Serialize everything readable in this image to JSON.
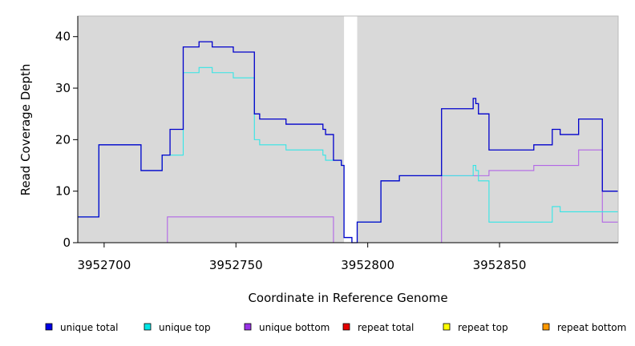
{
  "chart_data": {
    "type": "line",
    "title": "",
    "xlabel": "Coordinate in Reference Genome",
    "ylabel": "Read Coverage Depth",
    "xlim": [
      3952690,
      3952895
    ],
    "ylim": [
      0,
      44
    ],
    "x_ticks": [
      3952700,
      3952750,
      3952800,
      3952850
    ],
    "x_tick_labels": [
      "3952700",
      "3952750",
      "3952800",
      "3952850"
    ],
    "y_ticks": [
      0,
      10,
      20,
      30,
      40
    ],
    "y_tick_labels": [
      "0",
      "10",
      "20",
      "30",
      "40"
    ],
    "grid": false,
    "legend_position": "bottom",
    "gaps": [
      [
        3952791,
        3952796
      ]
    ],
    "series": [
      {
        "name": "unique total",
        "color": "#0000cc",
        "steps": [
          [
            3952690,
            5
          ],
          [
            3952698,
            19
          ],
          [
            3952714,
            14
          ],
          [
            3952722,
            17
          ],
          [
            3952725,
            22
          ],
          [
            3952730,
            38
          ],
          [
            3952736,
            39
          ],
          [
            3952741,
            38
          ],
          [
            3952749,
            37
          ],
          [
            3952757,
            25
          ],
          [
            3952759,
            24
          ],
          [
            3952769,
            23
          ],
          [
            3952783,
            22
          ],
          [
            3952784,
            21
          ],
          [
            3952787,
            16
          ],
          [
            3952790,
            15
          ],
          [
            3952791,
            1
          ],
          [
            3952794,
            0
          ],
          [
            3952796,
            4
          ],
          [
            3952805,
            12
          ],
          [
            3952812,
            13
          ],
          [
            3952828,
            26
          ],
          [
            3952840,
            28
          ],
          [
            3952841,
            27
          ],
          [
            3952842,
            25
          ],
          [
            3952846,
            18
          ],
          [
            3952863,
            19
          ],
          [
            3952870,
            22
          ],
          [
            3952873,
            21
          ],
          [
            3952880,
            24
          ],
          [
            3952889,
            10
          ],
          [
            3952895,
            10
          ]
        ]
      },
      {
        "name": "unique top",
        "color": "#33e6e6",
        "steps": [
          [
            3952690,
            5
          ],
          [
            3952698,
            19
          ],
          [
            3952714,
            14
          ],
          [
            3952722,
            17
          ],
          [
            3952730,
            33
          ],
          [
            3952736,
            34
          ],
          [
            3952741,
            33
          ],
          [
            3952749,
            32
          ],
          [
            3952757,
            20
          ],
          [
            3952759,
            19
          ],
          [
            3952769,
            18
          ],
          [
            3952783,
            17
          ],
          [
            3952784,
            16
          ],
          [
            3952787,
            16
          ],
          [
            3952790,
            15
          ],
          [
            3952791,
            1
          ],
          [
            3952794,
            0
          ],
          [
            3952796,
            4
          ],
          [
            3952805,
            12
          ],
          [
            3952812,
            13
          ],
          [
            3952828,
            13
          ],
          [
            3952840,
            15
          ],
          [
            3952841,
            14
          ],
          [
            3952842,
            12
          ],
          [
            3952846,
            4
          ],
          [
            3952870,
            7
          ],
          [
            3952873,
            6
          ],
          [
            3952895,
            6
          ]
        ]
      },
      {
        "name": "unique bottom",
        "color": "#b266e6",
        "steps": [
          [
            3952690,
            0
          ],
          [
            3952724,
            5
          ],
          [
            3952787,
            0
          ],
          [
            3952828,
            13
          ],
          [
            3952846,
            14
          ],
          [
            3952863,
            15
          ],
          [
            3952880,
            18
          ],
          [
            3952889,
            4
          ],
          [
            3952895,
            4
          ]
        ]
      },
      {
        "name": "repeat total",
        "color": "#e60000",
        "steps": [
          [
            3952690,
            0
          ],
          [
            3952895,
            0
          ]
        ]
      },
      {
        "name": "repeat top",
        "color": "#ffff00",
        "steps": [
          [
            3952690,
            0
          ],
          [
            3952895,
            0
          ]
        ]
      },
      {
        "name": "repeat bottom",
        "color": "#ff9900",
        "steps": [
          [
            3952690,
            0
          ],
          [
            3952895,
            0
          ]
        ]
      }
    ]
  },
  "legend": [
    {
      "label": "unique total",
      "color": "#0000e6"
    },
    {
      "label": "unique top",
      "color": "#00e6e6"
    },
    {
      "label": "unique bottom",
      "color": "#9933e6"
    },
    {
      "label": "repeat total",
      "color": "#e60000"
    },
    {
      "label": "repeat top",
      "color": "#ffff00"
    },
    {
      "label": "repeat bottom",
      "color": "#ff9900"
    }
  ]
}
